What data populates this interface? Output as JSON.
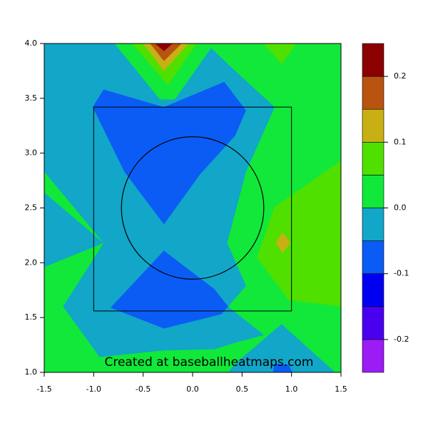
{
  "chart_data": {
    "type": "contour",
    "annotation": "Created at baseballheatmaps.com",
    "xlim": [
      -1.5,
      1.5
    ],
    "ylim": [
      1.0,
      4.0
    ],
    "xticks": [
      -1.5,
      {
        "value": -1.0,
        "label": "-1.0"
      },
      -0.5,
      {
        "value": 0.0,
        "label": "0.0"
      },
      0.5,
      {
        "value": 1.0,
        "label": "1.0"
      },
      1.5
    ],
    "yticks": [
      {
        "value": 1.0,
        "label": "1.0"
      },
      1.5,
      {
        "value": 2.0,
        "label": "2.0"
      },
      2.5,
      {
        "value": 3.0,
        "label": "3.0"
      },
      3.5,
      {
        "value": 4.0,
        "label": "4.0"
      }
    ],
    "levels": [
      -0.25,
      -0.2,
      -0.15,
      -0.1,
      -0.05,
      0.0,
      0.05,
      0.1,
      0.15,
      0.2,
      0.25
    ],
    "colors": [
      "#9b1cf5",
      "#4a00f0",
      "#0000f0",
      "#0a5cf5",
      "#12a6c8",
      "#11e83a",
      "#4fe000",
      "#c8b014",
      "#b8540f",
      "#8b0000"
    ],
    "colorbar_ticks": [
      -0.2,
      -0.1,
      {
        "value": 0.0,
        "label": "0.0"
      },
      0.1,
      0.2
    ],
    "regions": [
      {
        "level": -0.05,
        "points": [
          [
            -1.5,
            1
          ],
          [
            1.5,
            1
          ],
          [
            1.5,
            4
          ],
          [
            -1.5,
            4
          ]
        ]
      },
      {
        "level": 0.0,
        "points": [
          [
            0.0,
            4
          ],
          [
            1.5,
            4
          ],
          [
            1.5,
            1
          ],
          [
            1.44,
            1
          ],
          [
            0.94,
            1.44
          ],
          [
            0.72,
            1.34
          ],
          [
            0.36,
            1.6
          ],
          [
            0.54,
            1.79
          ],
          [
            0.35,
            2.18
          ],
          [
            0.54,
            2.83
          ],
          [
            0.83,
            3.42
          ],
          [
            0.43,
            3.75
          ],
          [
            0.14,
            4
          ]
        ]
      },
      {
        "level": 0.0,
        "points": [
          [
            -1.5,
            1
          ],
          [
            -1.5,
            1.96
          ],
          [
            -0.9,
            2.18
          ],
          [
            -1.31,
            1.6
          ],
          [
            -0.94,
            1.14
          ],
          [
            -0.29,
            1.2
          ],
          [
            0.22,
            1.21
          ],
          [
            0.43,
            1.27
          ],
          [
            0.72,
            1.34
          ],
          [
            0.94,
            1.44
          ],
          [
            1.44,
            1
          ]
        ]
      },
      {
        "level": 0.0,
        "points": [
          [
            -1.5,
            2.83
          ],
          [
            -0.9,
            2.18
          ],
          [
            -1.5,
            2.64
          ]
        ]
      },
      {
        "level": 0.0,
        "points": [
          [
            -0.79,
            4
          ],
          [
            0.22,
            4
          ],
          [
            -0.18,
            3.49
          ],
          [
            -0.33,
            3.49
          ]
        ]
      },
      {
        "level": -0.05,
        "points": [
          [
            0.43,
            1.08
          ],
          [
            0.9,
            1.44
          ],
          [
            1.44,
            1
          ],
          [
            0.36,
            1
          ]
        ]
      },
      {
        "level": 0.05,
        "points": [
          [
            -0.61,
            4
          ],
          [
            0.04,
            4
          ],
          [
            -0.25,
            3.62
          ]
        ]
      },
      {
        "level": 0.05,
        "points": [
          [
            0.72,
            4
          ],
          [
            1.05,
            4
          ],
          [
            0.9,
            3.81
          ]
        ]
      },
      {
        "level": 0.05,
        "points": [
          [
            1.5,
            2.93
          ],
          [
            1.5,
            1.6
          ],
          [
            0.97,
            1.66
          ],
          [
            0.65,
            2.05
          ],
          [
            0.83,
            2.51
          ]
        ]
      },
      {
        "level": 0.1,
        "points": [
          [
            0.91,
            2.28
          ],
          [
            0.99,
            2.18
          ],
          [
            0.91,
            2.09
          ],
          [
            0.84,
            2.18
          ]
        ]
      },
      {
        "level": 0.1,
        "points": [
          [
            -0.5,
            4
          ],
          [
            -0.04,
            4
          ],
          [
            -0.29,
            3.75
          ]
        ]
      },
      {
        "level": 0.15,
        "points": [
          [
            -0.43,
            4
          ],
          [
            -0.11,
            4
          ],
          [
            -0.29,
            3.84
          ]
        ]
      },
      {
        "level": 0.2,
        "points": [
          [
            -0.38,
            4
          ],
          [
            -0.2,
            4
          ],
          [
            -0.29,
            3.93
          ]
        ]
      },
      {
        "level": -0.1,
        "points": [
          [
            -1.01,
            3.42
          ],
          [
            -0.9,
            3.58
          ],
          [
            -0.29,
            3.42
          ],
          [
            0.32,
            3.65
          ],
          [
            0.54,
            3.39
          ],
          [
            0.43,
            3.16
          ],
          [
            0.07,
            2.8
          ],
          [
            -0.29,
            2.35
          ],
          [
            -0.69,
            2.83
          ]
        ]
      },
      {
        "level": -0.1,
        "points": [
          [
            -0.83,
            1.59
          ],
          [
            -0.29,
            2.11
          ],
          [
            0.22,
            1.76
          ],
          [
            0.36,
            1.6
          ],
          [
            0.29,
            1.53
          ],
          [
            -0.29,
            1.4
          ]
        ]
      },
      {
        "level": -0.1,
        "points": [
          [
            0.83,
            1.08
          ],
          [
            0.97,
            1.07
          ],
          [
            1.01,
            1
          ],
          [
            0.81,
            1
          ]
        ]
      }
    ],
    "strike_zone": {
      "x": [
        -1.0,
        1.0
      ],
      "y": [
        1.56,
        3.42
      ]
    },
    "circle": {
      "center": [
        0.0,
        2.5
      ],
      "radius": [
        0.72,
        0.65
      ]
    }
  }
}
